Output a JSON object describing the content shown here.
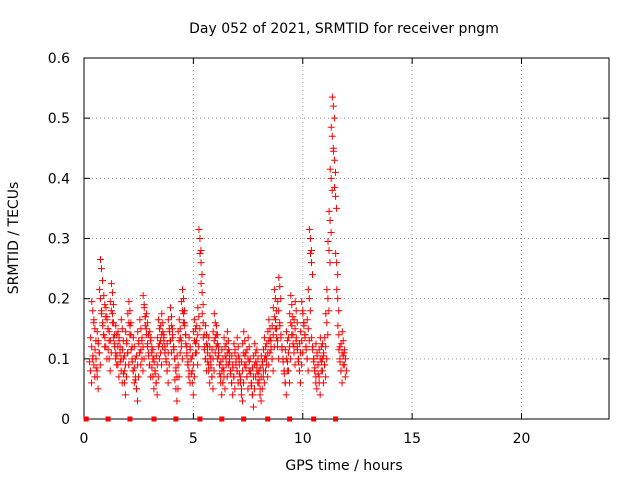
{
  "chart_data": {
    "type": "scatter",
    "title": "Day 052 of 2021, SRMTID for receiver pngm",
    "xlabel": "GPS time / hours",
    "ylabel": "SRMTID / TECUs",
    "xlim": [
      0,
      24
    ],
    "ylim": [
      0,
      0.6
    ],
    "xticks": [
      0,
      5,
      10,
      15,
      20
    ],
    "xtick_labels": [
      "0",
      "5",
      "10",
      "15",
      "20"
    ],
    "yticks": [
      0,
      0.1,
      0.2,
      0.3,
      0.4,
      0.5,
      0.6
    ],
    "ytick_labels": [
      "0",
      "0.1",
      "0.2",
      "0.3",
      "0.4",
      "0.5",
      "0.6"
    ],
    "grid": true,
    "marker": "+",
    "color": "#ff0000",
    "series": [
      {
        "name": "SRMTID",
        "x": [
          0.05,
          0.1,
          0.15,
          0.2,
          0.25,
          0.3,
          0.35,
          0.4,
          0.45,
          0.5,
          0.55,
          0.6,
          0.65,
          0.7,
          0.75,
          0.8,
          0.85,
          0.9,
          0.95,
          1.0,
          1.05,
          1.1,
          1.15,
          1.2,
          1.25,
          1.3,
          1.35,
          1.4,
          1.45,
          1.5,
          1.55,
          1.6,
          1.65,
          1.7,
          1.75,
          1.8,
          1.85,
          1.9,
          1.95,
          2.0,
          2.05,
          2.1,
          2.15,
          2.2,
          2.25,
          2.3,
          2.35,
          2.4,
          2.45,
          2.5,
          2.55,
          2.6,
          2.65,
          2.7,
          2.75,
          2.8,
          2.85,
          2.9,
          2.95,
          3.0,
          3.05,
          3.1,
          3.15,
          3.2,
          3.25,
          3.3,
          3.35,
          3.4,
          3.45,
          3.5,
          3.55,
          3.6,
          3.65,
          3.7,
          3.75,
          3.8,
          3.85,
          3.9,
          3.95,
          4.0,
          4.05,
          4.1,
          4.15,
          4.2,
          4.25,
          4.3,
          4.35,
          4.4,
          4.45,
          4.5,
          4.55,
          4.6,
          4.65,
          4.7,
          4.75,
          4.8,
          4.85,
          4.9,
          4.95,
          5.0,
          5.05,
          5.1,
          5.15,
          5.2,
          5.25,
          5.3,
          5.35,
          5.4,
          5.45,
          5.5,
          5.55,
          5.6,
          5.65,
          5.7,
          5.75,
          5.8,
          5.85,
          5.9,
          5.95,
          6.0,
          6.05,
          6.1,
          6.15,
          6.2,
          6.25,
          6.3,
          6.35,
          6.4,
          6.45,
          6.5,
          6.55,
          6.6,
          6.65,
          6.7,
          6.75,
          6.8,
          6.85,
          6.9,
          6.95,
          7.0,
          7.05,
          7.1,
          7.15,
          7.2,
          7.25,
          7.3,
          7.35,
          7.4,
          7.45,
          7.5,
          7.55,
          7.6,
          7.65,
          7.7,
          7.75,
          7.8,
          7.85,
          7.9,
          7.95,
          8.0,
          8.05,
          8.1,
          8.15,
          8.2,
          8.25,
          8.3,
          8.35,
          8.4,
          8.45,
          8.5,
          8.55,
          8.6,
          8.65,
          8.7,
          8.75,
          8.8,
          8.85,
          8.9,
          8.95,
          9.0,
          9.05,
          9.1,
          9.15,
          9.2,
          9.25,
          9.3,
          9.35,
          9.4,
          9.45,
          9.5,
          9.55,
          9.6,
          9.65,
          9.7,
          9.75,
          9.8,
          9.85,
          9.9,
          9.95,
          10.0,
          10.05,
          10.1,
          10.15,
          10.2,
          10.25,
          10.3,
          10.35,
          10.4,
          10.45,
          10.5,
          10.55,
          10.6,
          10.65,
          10.7,
          10.75,
          10.8,
          10.85,
          10.9,
          10.95,
          11.0,
          11.05,
          11.1,
          11.15,
          11.2,
          11.25,
          11.3,
          11.35,
          11.4,
          11.45,
          11.5,
          11.55,
          11.6,
          11.65,
          11.7,
          11.75,
          11.8,
          11.85,
          11.9,
          11.95,
          12.0,
          12.05,
          12.1,
          12.15,
          12.2,
          0.08,
          0.12,
          0.18,
          0.09,
          0.15,
          0.1,
          0.07,
          0.13,
          0.11,
          0.2,
          0.25,
          0.16,
          0.14,
          0.19,
          0.12,
          0.17,
          0.15,
          0.1,
          0.13,
          0.18,
          0.21,
          0.16,
          0.12,
          0.11,
          0.14,
          0.09,
          0.13,
          0.12,
          0.08,
          0.15,
          0.1,
          0.06,
          0.09,
          0.13,
          0.11,
          0.16,
          0.18,
          0.14,
          0.1,
          0.08,
          0.12,
          0.07,
          0.05,
          0.09,
          0.13,
          0.11,
          0.15,
          0.1,
          0.12,
          0.19,
          0.17,
          0.14,
          0.16,
          0.11,
          0.09,
          0.13,
          0.12,
          0.07,
          0.1,
          0.08,
          0.06,
          0.09,
          0.12,
          0.15,
          0.11,
          0.14,
          0.16,
          0.13,
          0.12,
          0.1,
          0.08,
          0.11,
          0.15,
          0.13,
          0.17,
          0.14,
          0.12,
          0.1,
          0.05,
          0.07,
          0.09,
          0.13,
          0.15,
          0.12,
          0.18,
          0.2,
          0.16,
          0.14,
          0.11,
          0.09,
          0.08,
          0.12,
          0.1,
          0.06,
          0.09,
          0.13,
          0.15,
          0.11,
          0.14,
          0.17,
          0.3,
          0.26,
          0.21,
          0.16,
          0.12,
          0.1,
          0.14,
          0.11,
          0.08,
          0.12,
          0.09,
          0.07,
          0.1,
          0.13,
          0.16,
          0.12,
          0.14,
          0.11,
          0.09,
          0.06,
          0.08,
          0.1,
          0.07,
          0.12,
          0.09,
          0.11,
          0.13,
          0.1,
          0.08,
          0.06,
          0.09,
          0.07,
          0.11,
          0.1,
          0.08,
          0.12,
          0.09,
          0.06,
          0.05,
          0.08,
          0.11,
          0.13,
          0.09,
          0.07,
          0.1,
          0.12,
          0.08,
          0.06,
          0.04,
          0.07,
          0.09,
          0.11,
          0.08,
          0.1,
          0.06,
          0.05,
          0.07,
          0.09,
          0.08,
          0.1,
          0.12,
          0.09,
          0.11,
          0.13,
          0.15,
          0.12,
          0.1,
          0.14,
          0.17,
          0.2,
          0.15,
          0.12,
          0.18,
          0.22,
          0.14,
          0.12,
          0.1,
          0.08,
          0.06,
          0.1,
          0.13,
          0.08,
          0.12,
          0.16,
          0.19,
          0.14,
          0.11,
          0.15,
          0.18,
          0.12,
          0.1,
          0.08,
          0.11,
          0.13,
          0.18,
          0.16,
          0.14,
          0.12,
          0.1,
          0.15,
          0.2,
          0.3,
          0.26,
          0.12,
          0.1,
          0.08,
          0.07,
          0.11,
          0.09,
          0.06,
          0.1,
          0.12,
          0.08,
          0.11,
          0.09,
          0.12,
          0.16,
          0.2,
          0.28,
          0.33,
          0.4,
          0.47,
          0.52,
          0.43,
          0.37,
          0.26,
          0.2,
          0.14,
          0.1,
          0.08,
          0.11,
          0.13,
          0.09,
          0.1
        ]
      }
    ],
    "baseline_markers_x": [
      0.1,
      1.1,
      2.1,
      3.2,
      4.2,
      5.3,
      6.3,
      7.3,
      8.4,
      9.4,
      10.5,
      11.5
    ]
  }
}
